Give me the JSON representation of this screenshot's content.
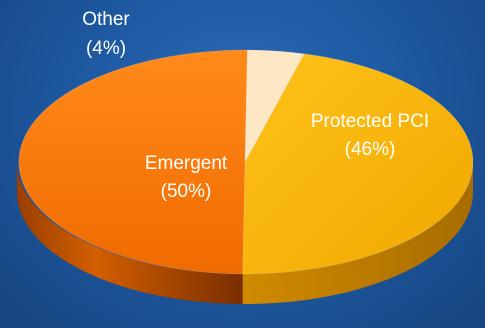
{
  "chart_data": {
    "type": "pie",
    "title": "",
    "slices": [
      {
        "label": "Protected PCI",
        "percent_label": "(46%)",
        "value": 46,
        "color": "#f7b500"
      },
      {
        "label": "Emergent",
        "percent_label": "(50%)",
        "value": 50,
        "color": "#f57900"
      },
      {
        "label": "Other",
        "percent_label": "(4%)",
        "value": 4,
        "color": "#fde7c4"
      }
    ]
  }
}
